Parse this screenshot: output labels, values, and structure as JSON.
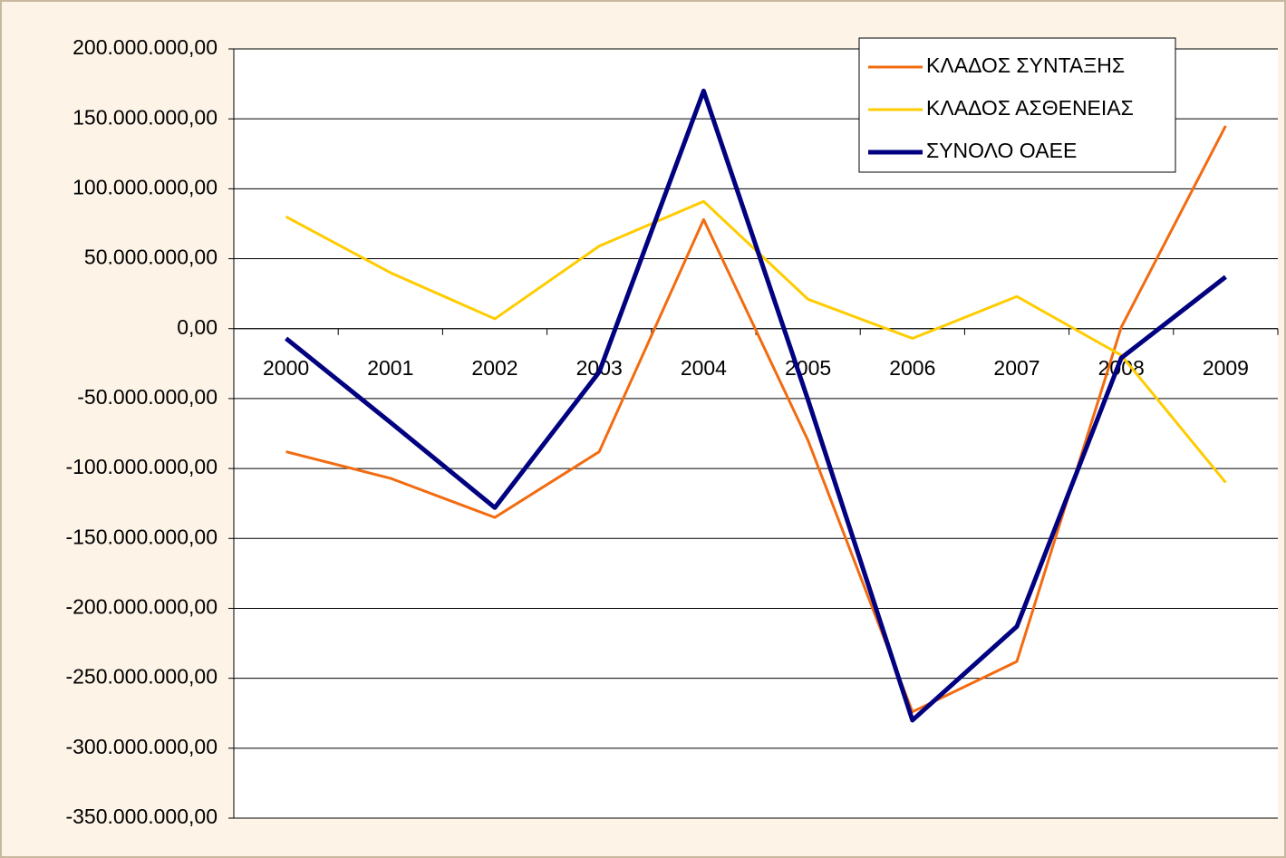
{
  "chart_data": {
    "type": "line",
    "categories": [
      "2000",
      "2001",
      "2002",
      "2003",
      "2004",
      "2005",
      "2006",
      "2007",
      "2008",
      "2009"
    ],
    "series": [
      {
        "name": "ΚΛΑΔΟΣ ΣΥΝΤΑΞΗΣ",
        "color": "#f26b10",
        "width": 3,
        "values": [
          -88000000,
          -107000000,
          -135000000,
          -88000000,
          78000000,
          -80000000,
          -274000000,
          -238000000,
          1000000,
          145000000
        ]
      },
      {
        "name": "ΚΛΑΔΟΣ ΑΣΘΕΝΕΙΑΣ",
        "color": "#ffcc00",
        "width": 3,
        "values": [
          80000000,
          40000000,
          7000000,
          59000000,
          91000000,
          21000000,
          -7000000,
          23000000,
          -19000000,
          -110000000
        ]
      },
      {
        "name": "ΣΥΝΟΛΟ ΟΑΕΕ",
        "color": "#000080",
        "width": 5,
        "values": [
          -7000000,
          -67000000,
          -128000000,
          -31000000,
          170000000,
          -51000000,
          -280000000,
          -213000000,
          -21000000,
          37000000
        ]
      }
    ],
    "ylim": [
      -350000000,
      200000000
    ],
    "yticks": [
      {
        "value": -350000000,
        "label": "-350.000.000,00"
      },
      {
        "value": -300000000,
        "label": "-300.000.000,00"
      },
      {
        "value": -250000000,
        "label": "-250.000.000,00"
      },
      {
        "value": -200000000,
        "label": "-200.000.000,00"
      },
      {
        "value": -150000000,
        "label": "-150.000.000,00"
      },
      {
        "value": -100000000,
        "label": "-100.000.000,00"
      },
      {
        "value": -50000000,
        "label": "-50.000.000,00"
      },
      {
        "value": 0,
        "label": "0,00"
      },
      {
        "value": 50000000,
        "label": "50.000.000,00"
      },
      {
        "value": 100000000,
        "label": "100.000.000,00"
      },
      {
        "value": 150000000,
        "label": "150.000.000,00"
      },
      {
        "value": 200000000,
        "label": "200.000.000,00"
      }
    ],
    "grid": true,
    "legend": "top-right"
  }
}
